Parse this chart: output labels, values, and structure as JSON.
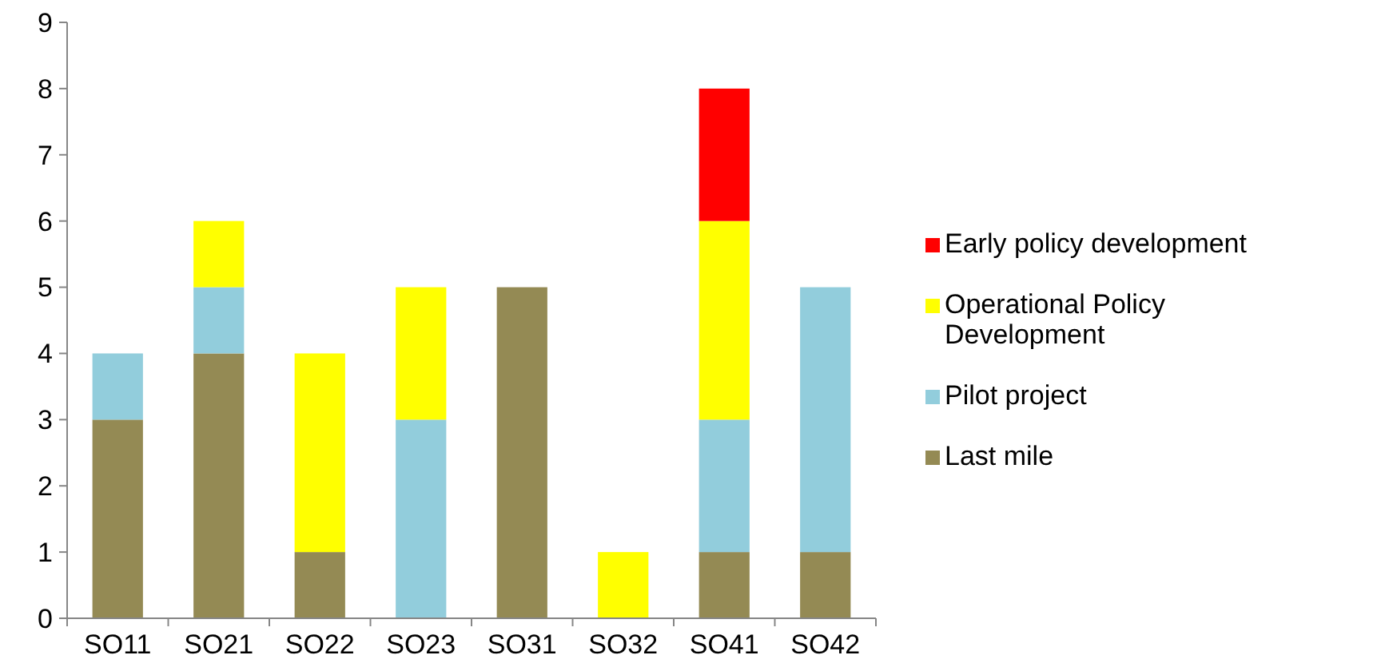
{
  "chart_data": {
    "type": "bar",
    "stacked": true,
    "categories": [
      "SO11",
      "SO21",
      "SO22",
      "SO23",
      "SO31",
      "SO32",
      "SO41",
      "SO42"
    ],
    "series": [
      {
        "name": "Last mile",
        "color": "#948a54",
        "values": [
          3,
          4,
          1,
          0,
          5,
          0,
          1,
          1
        ]
      },
      {
        "name": "Pilot project",
        "color": "#92cddc",
        "values": [
          1,
          1,
          0,
          3,
          0,
          0,
          2,
          4
        ]
      },
      {
        "name": "Operational Policy Development",
        "color": "#ffff00",
        "values": [
          0,
          1,
          3,
          2,
          0,
          1,
          3,
          0
        ]
      },
      {
        "name": "Early policy development",
        "color": "#ff0000",
        "values": [
          0,
          0,
          0,
          0,
          0,
          0,
          2,
          0
        ]
      }
    ],
    "ylim": [
      0,
      9
    ],
    "yticks": [
      0,
      1,
      2,
      3,
      4,
      5,
      6,
      7,
      8,
      9
    ],
    "grid": false,
    "legend": "right"
  }
}
